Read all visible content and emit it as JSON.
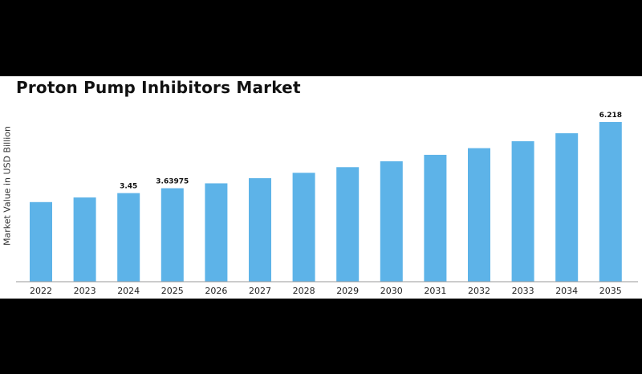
{
  "chart_data": {
    "type": "bar",
    "title": "Proton Pump Inhibitors Market",
    "ylabel": "Market Value in USD Billion",
    "xlabel": "",
    "categories": [
      "2022",
      "2023",
      "2024",
      "2025",
      "2026",
      "2027",
      "2028",
      "2029",
      "2030",
      "2031",
      "2032",
      "2033",
      "2034",
      "2035"
    ],
    "values": [
      3.1,
      3.28,
      3.45,
      3.63975,
      3.83,
      4.03,
      4.24,
      4.46,
      4.69,
      4.94,
      5.2,
      5.47,
      5.78,
      6.218
    ],
    "data_labels": [
      {
        "index": 2,
        "text": "3.45"
      },
      {
        "index": 3,
        "text": "3.63975"
      },
      {
        "index": 13,
        "text": "6.218"
      }
    ],
    "ylim": [
      0,
      6.5
    ],
    "bar_color": "#5db3e8",
    "grid": false,
    "legend": "none"
  }
}
